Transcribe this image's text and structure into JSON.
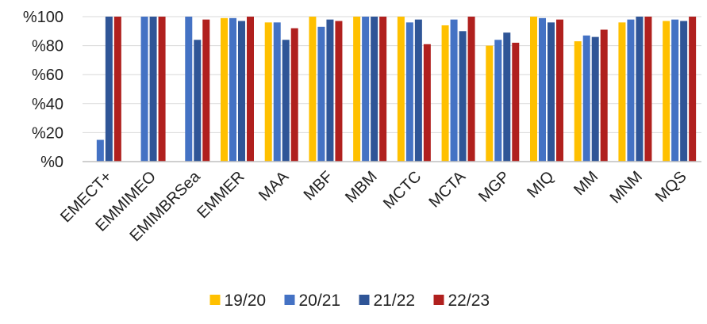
{
  "chart_data": {
    "type": "bar",
    "categories": [
      "EMECT+",
      "EMMIMEO",
      "EMIMBRSea",
      "EMMER",
      "MAA",
      "MBF",
      "MBM",
      "MCTC",
      "MCTA",
      "MGP",
      "MIQ",
      "MM",
      "MNM",
      "MQS"
    ],
    "series": [
      {
        "name": "19/20",
        "color": "#FFC000",
        "values": [
          null,
          null,
          null,
          99,
          96,
          100,
          100,
          100,
          94,
          80,
          100,
          83,
          96,
          97
        ]
      },
      {
        "name": "20/21",
        "color": "#4472C4",
        "values": [
          15,
          100,
          100,
          99,
          96,
          93,
          100,
          96,
          98,
          84,
          99,
          87,
          98,
          98
        ]
      },
      {
        "name": "21/22",
        "color": "#2F5597",
        "values": [
          100,
          100,
          84,
          97,
          84,
          98,
          100,
          98,
          90,
          89,
          96,
          86,
          100,
          97
        ]
      },
      {
        "name": "22/23",
        "color": "#B0201E",
        "values": [
          100,
          100,
          98,
          100,
          92,
          97,
          100,
          81,
          100,
          82,
          98,
          91,
          100,
          100
        ]
      }
    ],
    "yticks": [
      "%0",
      "%20",
      "%40",
      "%60",
      "%80",
      "%100"
    ],
    "ylim": [
      0,
      100
    ],
    "grid": true,
    "legend": "bottom"
  }
}
